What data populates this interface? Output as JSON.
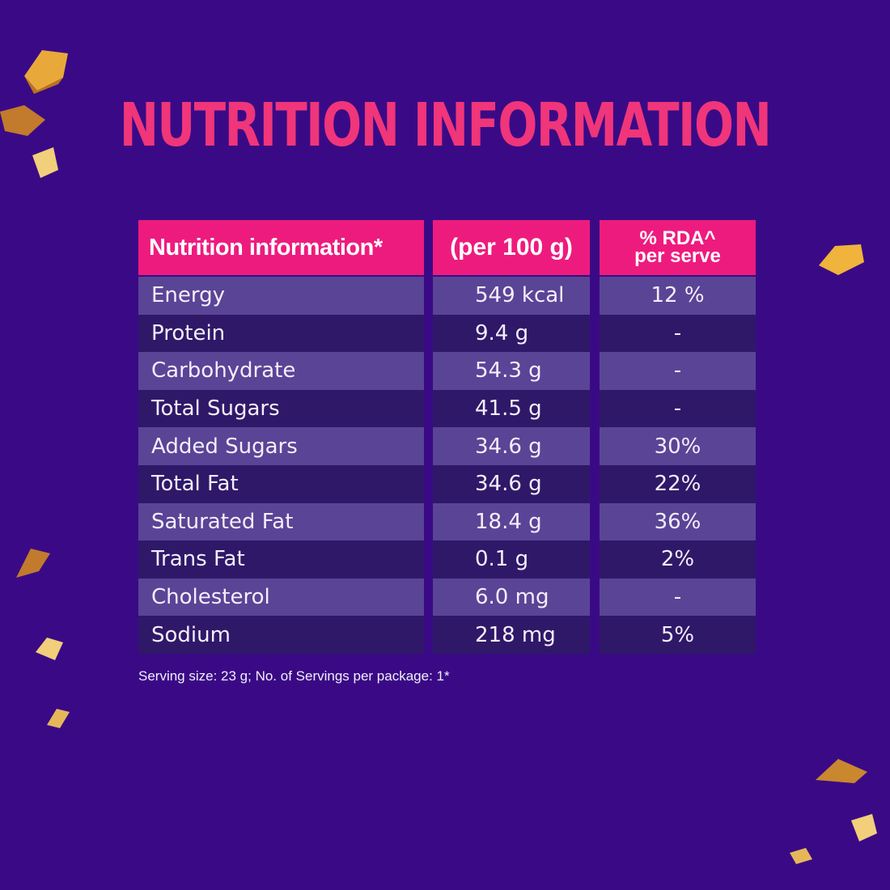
{
  "title": "NUTRITION INFORMATION",
  "table": {
    "headers": {
      "name": "Nutrition information*",
      "per": "(per 100 g)",
      "rda_line1": "% RDA^",
      "rda_line2": "per serve"
    },
    "rows": [
      {
        "name": "Energy",
        "per": "549 kcal",
        "rda": "12 %"
      },
      {
        "name": "Protein",
        "per": "9.4 g",
        "rda": "-"
      },
      {
        "name": "Carbohydrate",
        "per": "54.3 g",
        "rda": "-"
      },
      {
        "name": "Total Sugars",
        "per": "41.5 g",
        "rda": "-"
      },
      {
        "name": "Added Sugars",
        "per": "34.6 g",
        "rda": "30%"
      },
      {
        "name": "Total Fat",
        "per": "34.6 g",
        "rda": "22%"
      },
      {
        "name": "Saturated Fat",
        "per": "18.4 g",
        "rda": "36%"
      },
      {
        "name": "Trans Fat",
        "per": "0.1 g",
        "rda": "2%"
      },
      {
        "name": "Cholesterol",
        "per": "6.0 mg",
        "rda": "-"
      },
      {
        "name": "Sodium",
        "per": "218 mg",
        "rda": "5%"
      }
    ]
  },
  "footnote": "Serving size: 23 g; No. of Servings per package: 1*",
  "colors": {
    "background": "#3a0a86",
    "accent": "#ee1b7e",
    "title": "#f0357a",
    "row_light": "#5a4496",
    "row_dark": "#2f1868"
  }
}
